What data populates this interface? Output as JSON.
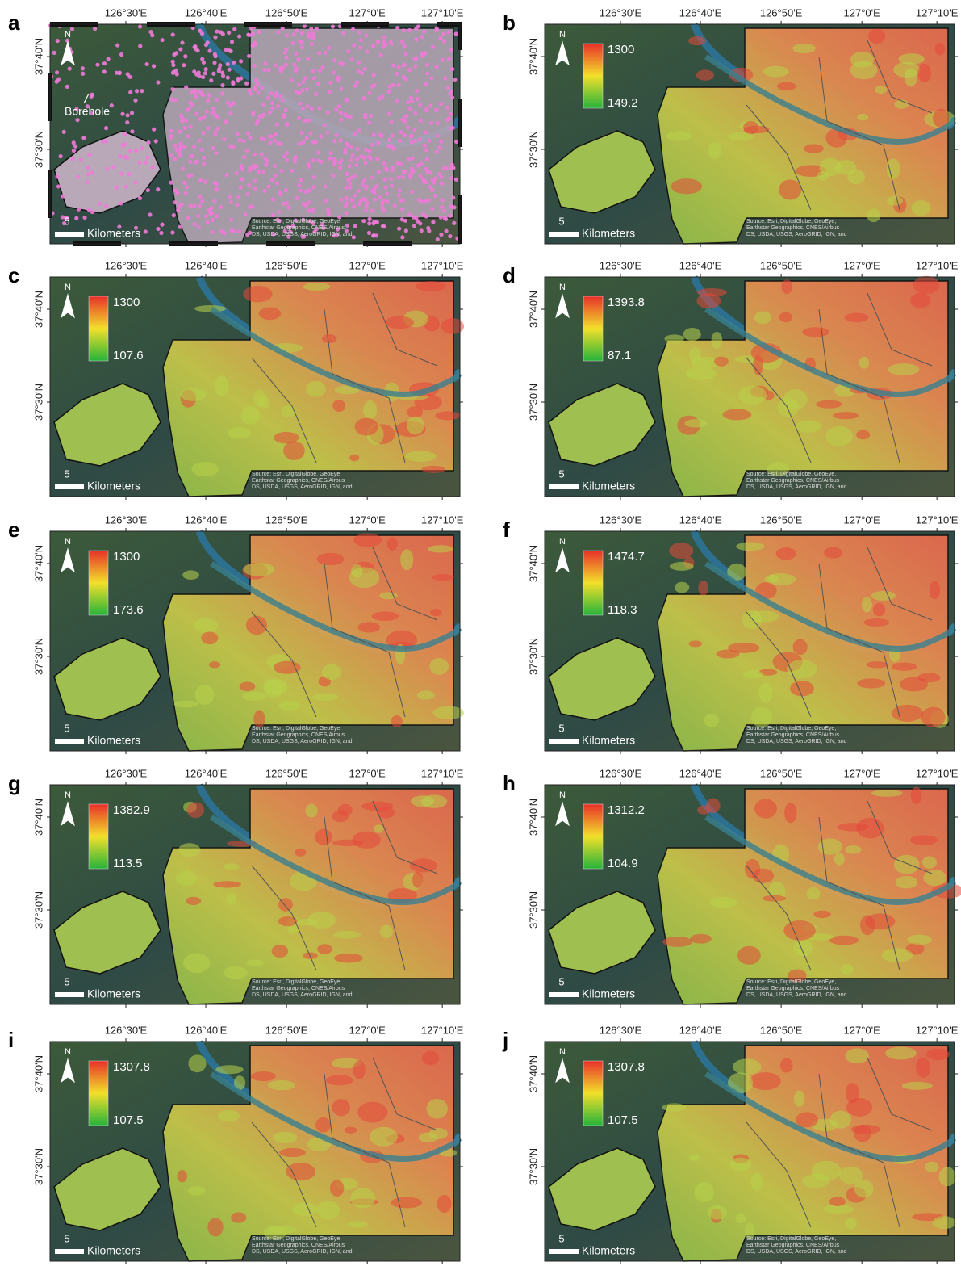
{
  "figure": {
    "lon_ticks": [
      "126°30'E",
      "126°40'E",
      "126°50'E",
      "127°0'E",
      "127°10'E"
    ],
    "lat_ticks": [
      "37°40'N",
      "37°30'N"
    ],
    "north_label": "N",
    "scale_value": "5",
    "scale_unit": "Kilometers",
    "borehole_label": "Borehole",
    "source_lines": [
      "Source: Esri, DigitalGlobe, GeoEye,",
      "Earthstar Geographics, CNES/Airbus",
      "DS, USDA, USGS, AeroGRID, IGN, and"
    ],
    "panels": [
      {
        "letter": "a"
      },
      {
        "letter": "b",
        "legend": {
          "max": 1300,
          "min": 149.2
        }
      },
      {
        "letter": "c",
        "legend": {
          "max": 1300,
          "min": 107.6
        }
      },
      {
        "letter": "d",
        "legend": {
          "max": 1393.8,
          "min": 87.1
        }
      },
      {
        "letter": "e",
        "legend": {
          "max": 1300,
          "min": 173.6
        }
      },
      {
        "letter": "f",
        "legend": {
          "max": 1474.7,
          "min": 118.3
        }
      },
      {
        "letter": "g",
        "legend": {
          "max": 1382.9,
          "min": 113.5
        }
      },
      {
        "letter": "h",
        "legend": {
          "max": 1312.2,
          "min": 104.9
        }
      },
      {
        "letter": "i",
        "legend": {
          "max": 1307.8,
          "min": 107.5
        }
      },
      {
        "letter": "j",
        "legend": {
          "max": 1307.8,
          "min": 107.5
        }
      }
    ]
  }
}
